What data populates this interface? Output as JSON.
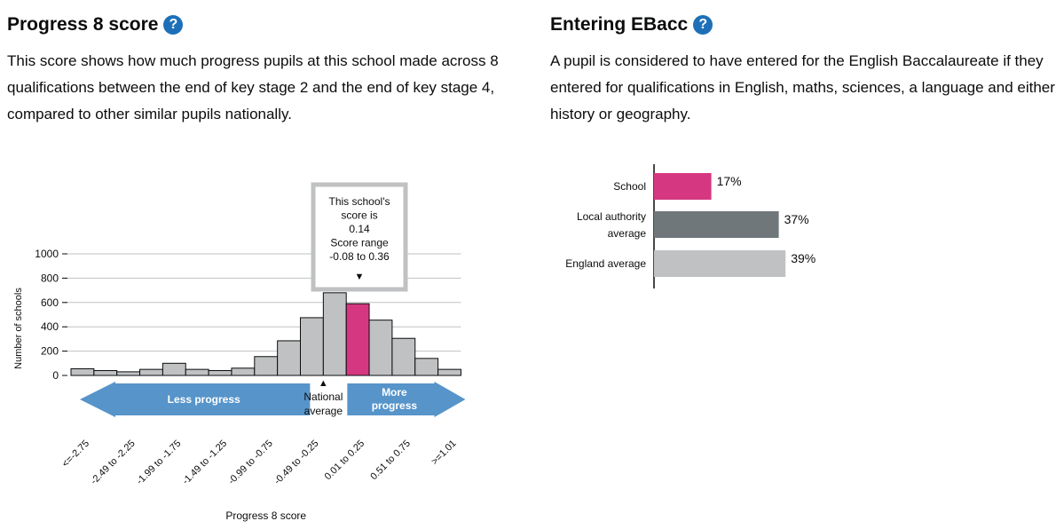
{
  "progress8": {
    "title": "Progress 8 score",
    "help_icon": "question-mark-icon",
    "description": "This score shows how much progress pupils at this school made across 8 qualifications between the end of key stage 2 and the end of key stage 4, compared to other similar pupils nationally."
  },
  "ebacc": {
    "title": "Entering EBacc",
    "help_icon": "question-mark-icon",
    "description": "A pupil is considered to have entered for the English Baccalaureate if they entered for qualifications in English, maths, sciences, a language and either history or geography."
  },
  "chart_data": [
    {
      "type": "bar",
      "xlabel": "Progress 8 score",
      "ylabel": "Number of schools",
      "ylim": [
        0,
        1000
      ],
      "yticks": [
        0,
        200,
        400,
        600,
        800,
        1000
      ],
      "grid": true,
      "tick_labels": [
        "<=-2.75",
        "-2.49 to -2.25",
        "-1.99 to -1.75",
        "-1.49 to -1.25",
        "-0.99 to -0.75",
        "-0.49 to -0.25",
        "0.01 to 0.25",
        "0.51 to 0.75",
        ">=1.01"
      ],
      "bin_tick_indices": [
        0,
        2,
        4,
        6,
        8,
        10,
        12,
        14,
        16
      ],
      "values": [
        55,
        40,
        30,
        50,
        100,
        50,
        40,
        60,
        155,
        285,
        475,
        680,
        590,
        455,
        305,
        140,
        50
      ],
      "highlight_index": 12,
      "colors": {
        "bar": "#bfc1c3",
        "highlight": "#d53880",
        "bar_stroke": "#0b0c0c",
        "arrow": "#5694ca"
      },
      "callout": {
        "lines": [
          "This school's",
          "score is",
          "0.14",
          "Score range",
          "-0.08 to 0.36"
        ],
        "pointer": "▼"
      },
      "national_average": {
        "marker": "▲",
        "lines": [
          "National",
          "average"
        ]
      },
      "less_progress": "Less progress",
      "more_progress": [
        "More",
        "progress"
      ]
    },
    {
      "type": "bar",
      "orientation": "horizontal",
      "categories": [
        [
          "School"
        ],
        [
          "Local authority",
          "average"
        ],
        [
          "England average"
        ]
      ],
      "values": [
        17,
        37,
        39
      ],
      "value_labels": [
        "17%",
        "37%",
        "39%"
      ],
      "colors": [
        "#d53880",
        "#6f777b",
        "#bfc1c3"
      ],
      "xlim": [
        0,
        100
      ]
    }
  ]
}
